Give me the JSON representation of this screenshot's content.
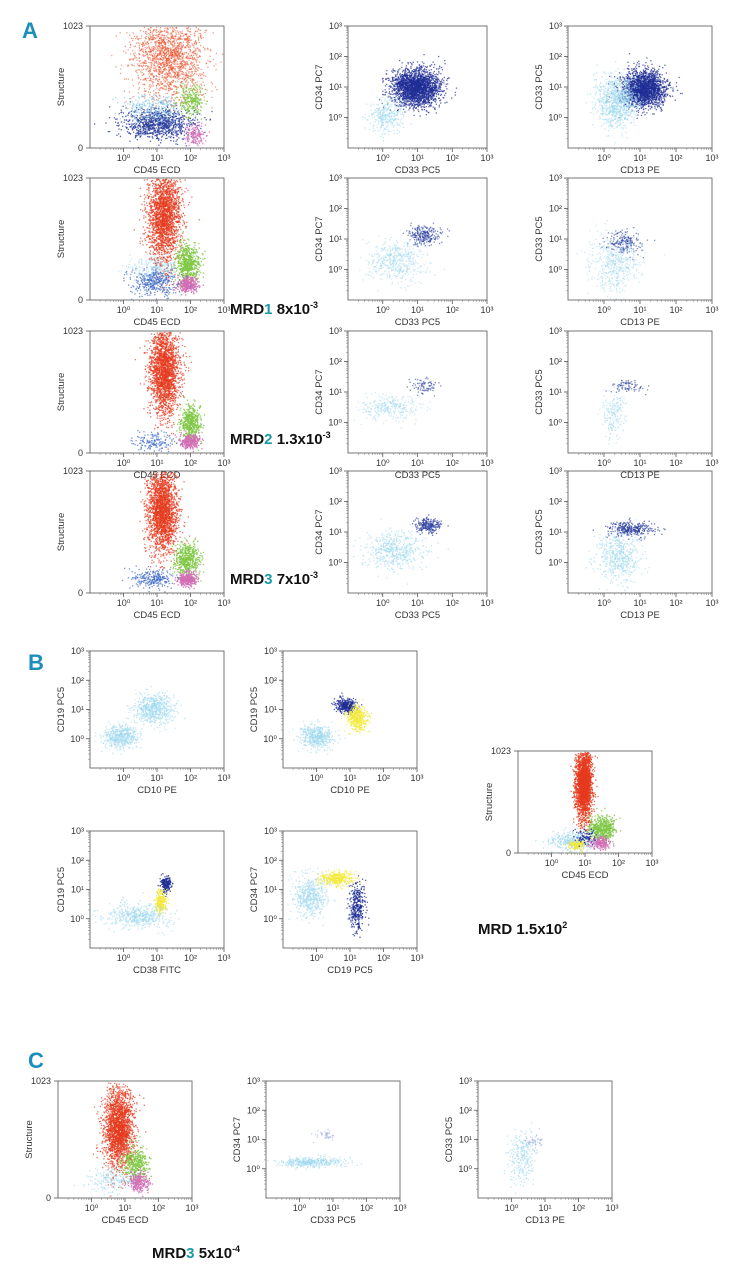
{
  "figure": {
    "section_labels": {
      "a": "A",
      "b": "B",
      "c": "C"
    },
    "mrd_labels": {
      "a1": {
        "prefix": "MRD",
        "num": "1",
        "value": "8x10",
        "exp": "-3"
      },
      "a2": {
        "prefix": "MRD",
        "num": "2",
        "value": "1.3x10",
        "exp": "-3"
      },
      "a3": {
        "prefix": "MRD",
        "num": "3",
        "value": "7x10",
        "exp": "-3"
      },
      "b": {
        "prefix": "MRD",
        "num": "",
        "value": "1.5x10",
        "exp": "2"
      },
      "c": {
        "prefix": "MRD",
        "num": "3",
        "value": "5x10",
        "exp": "-4"
      }
    }
  },
  "chart_data": [
    {
      "id": "A-r0-c0",
      "type": "scatter",
      "kind": "structure",
      "xlabel": "CD45 ECD",
      "ylabel": "Structure",
      "xticks": [
        "10⁰",
        "10¹",
        "10²",
        "10³"
      ],
      "yticks": [
        "0",
        "1023"
      ],
      "populations": [
        {
          "color": "#e8502a",
          "cx": 1.35,
          "cy": 0.76,
          "sx": 0.55,
          "sy": 0.18,
          "n": 1800,
          "alpha": 0.55
        },
        {
          "color": "#2c3f9e",
          "cx": 1.0,
          "cy": 0.2,
          "sx": 0.55,
          "sy": 0.06,
          "n": 900,
          "alpha": 0.8
        },
        {
          "color": "#7cc0e8",
          "cx": 0.9,
          "cy": 0.33,
          "sx": 0.45,
          "sy": 0.06,
          "n": 300,
          "alpha": 0.6
        },
        {
          "color": "#7ec843",
          "cx": 2.0,
          "cy": 0.4,
          "sx": 0.2,
          "sy": 0.07,
          "n": 250,
          "alpha": 0.8
        },
        {
          "color": "#d46db5",
          "cx": 2.1,
          "cy": 0.12,
          "sx": 0.15,
          "sy": 0.04,
          "n": 150,
          "alpha": 0.8
        }
      ]
    },
    {
      "id": "A-r0-c1",
      "type": "scatter",
      "kind": "log",
      "xlabel": "CD33 PC5",
      "ylabel": "CD34 PC7",
      "xticks": [
        "10⁰",
        "10¹",
        "10²",
        "10³"
      ],
      "yticks": [
        "10⁰",
        "10¹",
        "10²",
        "10³"
      ],
      "populations": [
        {
          "color": "#1f2e96",
          "cx": 0.95,
          "cy": 1.0,
          "sx": 0.35,
          "sy": 0.3,
          "n": 2200,
          "alpha": 0.7
        },
        {
          "color": "#9fd8ee",
          "cx": 0.1,
          "cy": 0.1,
          "sx": 0.25,
          "sy": 0.3,
          "n": 300,
          "alpha": 0.6
        }
      ]
    },
    {
      "id": "A-r0-c2",
      "type": "scatter",
      "kind": "log",
      "xlabel": "CD13 PE",
      "ylabel": "CD33 PC5",
      "xticks": [
        "10⁰",
        "10¹",
        "10²",
        "10³"
      ],
      "yticks": [
        "10⁰",
        "10¹",
        "10²",
        "10³"
      ],
      "populations": [
        {
          "color": "#1f2e96",
          "cx": 1.1,
          "cy": 0.95,
          "sx": 0.3,
          "sy": 0.3,
          "n": 2000,
          "alpha": 0.7
        },
        {
          "color": "#9fd8ee",
          "cx": 0.35,
          "cy": 0.55,
          "sx": 0.3,
          "sy": 0.4,
          "n": 900,
          "alpha": 0.6
        }
      ]
    },
    {
      "id": "A-r1-c0",
      "type": "scatter",
      "kind": "structure",
      "xlabel": "CD45 ECD",
      "ylabel": "Structure",
      "xticks": [
        "10⁰",
        "10¹",
        "10²",
        "10³"
      ],
      "yticks": [
        "0",
        "1023"
      ],
      "populations": [
        {
          "color": "#e63a1e",
          "cx": 1.2,
          "cy": 0.7,
          "sx": 0.25,
          "sy": 0.2,
          "n": 2200,
          "alpha": 0.7
        },
        {
          "color": "#7ec843",
          "cx": 1.9,
          "cy": 0.3,
          "sx": 0.18,
          "sy": 0.08,
          "n": 600,
          "alpha": 0.85
        },
        {
          "color": "#d46db5",
          "cx": 1.9,
          "cy": 0.13,
          "sx": 0.15,
          "sy": 0.03,
          "n": 300,
          "alpha": 0.9
        },
        {
          "color": "#3d69c8",
          "cx": 0.9,
          "cy": 0.16,
          "sx": 0.35,
          "sy": 0.06,
          "n": 400,
          "alpha": 0.7
        },
        {
          "color": "#9fd8ee",
          "cx": 0.9,
          "cy": 0.28,
          "sx": 0.35,
          "sy": 0.05,
          "n": 200,
          "alpha": 0.6
        }
      ]
    },
    {
      "id": "A-r1-c1",
      "type": "scatter",
      "kind": "log",
      "xlabel": "CD33 PC5",
      "ylabel": "CD34 PC7",
      "xticks": [
        "10⁰",
        "10¹",
        "10²",
        "10³"
      ],
      "yticks": [
        "10⁰",
        "10¹",
        "10²",
        "10³"
      ],
      "populations": [
        {
          "color": "#2c3f9e",
          "cx": 1.15,
          "cy": 1.15,
          "sx": 0.25,
          "sy": 0.15,
          "n": 250,
          "alpha": 0.6
        },
        {
          "color": "#9fd8ee",
          "cx": 0.4,
          "cy": 0.3,
          "sx": 0.4,
          "sy": 0.35,
          "n": 500,
          "alpha": 0.5
        }
      ]
    },
    {
      "id": "A-r1-c2",
      "type": "scatter",
      "kind": "log",
      "xlabel": "CD13 PE",
      "ylabel": "CD33 PC5",
      "xticks": [
        "10⁰",
        "10¹",
        "10²",
        "10³"
      ],
      "yticks": [
        "10⁰",
        "10¹",
        "10²",
        "10³"
      ],
      "populations": [
        {
          "color": "#2c3f9e",
          "cx": 0.55,
          "cy": 0.9,
          "sx": 0.25,
          "sy": 0.2,
          "n": 200,
          "alpha": 0.6
        },
        {
          "color": "#9fd8ee",
          "cx": 0.3,
          "cy": 0.15,
          "sx": 0.35,
          "sy": 0.45,
          "n": 500,
          "alpha": 0.5
        }
      ]
    },
    {
      "id": "A-r2-c0",
      "type": "scatter",
      "kind": "structure",
      "xlabel": "CD45 ECD",
      "ylabel": "Structure",
      "xticks": [
        "10⁰",
        "10¹",
        "10²",
        "10³"
      ],
      "yticks": [
        "0",
        "1023"
      ],
      "populations": [
        {
          "color": "#e63a1e",
          "cx": 1.2,
          "cy": 0.68,
          "sx": 0.22,
          "sy": 0.18,
          "n": 2200,
          "alpha": 0.7
        },
        {
          "color": "#7ec843",
          "cx": 2.0,
          "cy": 0.25,
          "sx": 0.15,
          "sy": 0.07,
          "n": 500,
          "alpha": 0.85
        },
        {
          "color": "#d46db5",
          "cx": 1.95,
          "cy": 0.1,
          "sx": 0.15,
          "sy": 0.03,
          "n": 300,
          "alpha": 0.9
        },
        {
          "color": "#3d69c8",
          "cx": 0.9,
          "cy": 0.1,
          "sx": 0.3,
          "sy": 0.04,
          "n": 150,
          "alpha": 0.7
        }
      ]
    },
    {
      "id": "A-r2-c1",
      "type": "scatter",
      "kind": "log",
      "xlabel": "CD33 PC5",
      "ylabel": "CD34 PC7",
      "xticks": [
        "10⁰",
        "10¹",
        "10²",
        "10³"
      ],
      "yticks": [
        "10⁰",
        "10¹",
        "10²",
        "10³"
      ],
      "populations": [
        {
          "color": "#2c3f9e",
          "cx": 1.2,
          "cy": 1.2,
          "sx": 0.2,
          "sy": 0.12,
          "n": 80,
          "alpha": 0.6
        },
        {
          "color": "#9fd8ee",
          "cx": 0.2,
          "cy": 0.5,
          "sx": 0.45,
          "sy": 0.2,
          "n": 300,
          "alpha": 0.5
        }
      ]
    },
    {
      "id": "A-r2-c2",
      "type": "scatter",
      "kind": "log",
      "xlabel": "CD13 PE",
      "ylabel": "CD33 PC5",
      "xticks": [
        "10⁰",
        "10¹",
        "10²",
        "10³"
      ],
      "yticks": [
        "10⁰",
        "10¹",
        "10²",
        "10³"
      ],
      "populations": [
        {
          "color": "#2c3f9e",
          "cx": 0.7,
          "cy": 1.2,
          "sx": 0.25,
          "sy": 0.1,
          "n": 80,
          "alpha": 0.6
        },
        {
          "color": "#9fd8ee",
          "cx": 0.25,
          "cy": 0.3,
          "sx": 0.15,
          "sy": 0.4,
          "n": 200,
          "alpha": 0.5
        }
      ]
    },
    {
      "id": "A-r3-c0",
      "type": "scatter",
      "kind": "structure",
      "xlabel": "CD45 ECD",
      "ylabel": "Structure",
      "xticks": [
        "10⁰",
        "10¹",
        "10²",
        "10³"
      ],
      "yticks": [
        "0",
        "1023"
      ],
      "populations": [
        {
          "color": "#e63a1e",
          "cx": 1.15,
          "cy": 0.68,
          "sx": 0.22,
          "sy": 0.17,
          "n": 2200,
          "alpha": 0.7
        },
        {
          "color": "#7ec843",
          "cx": 1.9,
          "cy": 0.28,
          "sx": 0.18,
          "sy": 0.07,
          "n": 500,
          "alpha": 0.85
        },
        {
          "color": "#d46db5",
          "cx": 1.9,
          "cy": 0.12,
          "sx": 0.15,
          "sy": 0.03,
          "n": 300,
          "alpha": 0.9
        },
        {
          "color": "#3d69c8",
          "cx": 0.85,
          "cy": 0.12,
          "sx": 0.3,
          "sy": 0.04,
          "n": 250,
          "alpha": 0.7
        }
      ]
    },
    {
      "id": "A-r3-c1",
      "type": "scatter",
      "kind": "log",
      "xlabel": "CD33 PC5",
      "ylabel": "CD34 PC7",
      "xticks": [
        "10⁰",
        "10¹",
        "10²",
        "10³"
      ],
      "yticks": [
        "10⁰",
        "10¹",
        "10²",
        "10³"
      ],
      "populations": [
        {
          "color": "#2c3f9e",
          "cx": 1.3,
          "cy": 1.25,
          "sx": 0.18,
          "sy": 0.12,
          "n": 220,
          "alpha": 0.7
        },
        {
          "color": "#9fd8ee",
          "cx": 0.3,
          "cy": 0.4,
          "sx": 0.45,
          "sy": 0.3,
          "n": 500,
          "alpha": 0.6
        }
      ]
    },
    {
      "id": "A-r3-c2",
      "type": "scatter",
      "kind": "log",
      "xlabel": "CD13 PE",
      "ylabel": "CD33 PC5",
      "xticks": [
        "10⁰",
        "10¹",
        "10²",
        "10³"
      ],
      "yticks": [
        "10⁰",
        "10¹",
        "10²",
        "10³"
      ],
      "populations": [
        {
          "color": "#2c3f9e",
          "cx": 0.75,
          "cy": 1.1,
          "sx": 0.3,
          "sy": 0.12,
          "n": 300,
          "alpha": 0.7
        },
        {
          "color": "#9fd8ee",
          "cx": 0.4,
          "cy": 0.2,
          "sx": 0.3,
          "sy": 0.4,
          "n": 500,
          "alpha": 0.6
        }
      ]
    },
    {
      "id": "B-1",
      "type": "scatter",
      "kind": "log",
      "xlabel": "CD10 PE",
      "ylabel": "CD19 PC5",
      "xticks": [
        "10⁰",
        "10¹",
        "10²",
        "10³"
      ],
      "yticks": [
        "10⁰",
        "10¹",
        "10²",
        "10³"
      ],
      "populations": [
        {
          "color": "#9fd8ee",
          "cx": 0.9,
          "cy": 1.05,
          "sx": 0.3,
          "sy": 0.25,
          "n": 600,
          "alpha": 0.6
        },
        {
          "color": "#9fd8ee",
          "cx": -0.1,
          "cy": 0.1,
          "sx": 0.25,
          "sy": 0.2,
          "n": 500,
          "alpha": 0.6
        }
      ]
    },
    {
      "id": "B-2",
      "type": "scatter",
      "kind": "log",
      "xlabel": "CD10 PE",
      "ylabel": "CD19 PC5",
      "xticks": [
        "10⁰",
        "10¹",
        "10²",
        "10³"
      ],
      "yticks": [
        "10⁰",
        "10¹",
        "10²",
        "10³"
      ],
      "populations": [
        {
          "color": "#1f2e96",
          "cx": 0.85,
          "cy": 1.15,
          "sx": 0.15,
          "sy": 0.12,
          "n": 350,
          "alpha": 0.75
        },
        {
          "color": "#f3e83a",
          "cx": 1.2,
          "cy": 0.7,
          "sx": 0.15,
          "sy": 0.2,
          "n": 400,
          "alpha": 0.75
        },
        {
          "color": "#9fd8ee",
          "cx": 0.0,
          "cy": 0.1,
          "sx": 0.25,
          "sy": 0.2,
          "n": 500,
          "alpha": 0.6
        }
      ]
    },
    {
      "id": "B-3",
      "type": "scatter",
      "kind": "log",
      "xlabel": "CD38 FITC",
      "ylabel": "CD19 PC5",
      "xticks": [
        "10⁰",
        "10¹",
        "10²",
        "10³"
      ],
      "yticks": [
        "10⁰",
        "10¹",
        "10²",
        "10³"
      ],
      "populations": [
        {
          "color": "#1f2e96",
          "cx": 1.25,
          "cy": 1.2,
          "sx": 0.08,
          "sy": 0.12,
          "n": 200,
          "alpha": 0.8
        },
        {
          "color": "#f3e83a",
          "cx": 1.1,
          "cy": 0.6,
          "sx": 0.08,
          "sy": 0.2,
          "n": 250,
          "alpha": 0.8
        },
        {
          "color": "#9fd8ee",
          "cx": 0.4,
          "cy": 0.1,
          "sx": 0.45,
          "sy": 0.2,
          "n": 500,
          "alpha": 0.6
        }
      ]
    },
    {
      "id": "B-4",
      "type": "scatter",
      "kind": "log",
      "xlabel": "CD19 PC5",
      "ylabel": "CD34 PC7",
      "xticks": [
        "10⁰",
        "10¹",
        "10²",
        "10³"
      ],
      "yticks": [
        "10⁰",
        "10¹",
        "10²",
        "10³"
      ],
      "populations": [
        {
          "color": "#f3e83a",
          "cx": 0.6,
          "cy": 1.4,
          "sx": 0.25,
          "sy": 0.12,
          "n": 350,
          "alpha": 0.75
        },
        {
          "color": "#1f2e96",
          "cx": 1.2,
          "cy": 0.4,
          "sx": 0.12,
          "sy": 0.4,
          "n": 350,
          "alpha": 0.75
        },
        {
          "color": "#9fd8ee",
          "cx": -0.2,
          "cy": 0.8,
          "sx": 0.25,
          "sy": 0.35,
          "n": 500,
          "alpha": 0.6
        }
      ]
    },
    {
      "id": "B-5",
      "type": "scatter",
      "kind": "structure",
      "xlabel": "CD45 ECD",
      "ylabel": "Structure",
      "xticks": [
        "10⁰",
        "10¹",
        "10²",
        "10³"
      ],
      "yticks": [
        "0",
        "1023"
      ],
      "populations": [
        {
          "color": "#e63a1e",
          "cx": 0.95,
          "cy": 0.68,
          "sx": 0.12,
          "sy": 0.17,
          "n": 2200,
          "alpha": 0.8
        },
        {
          "color": "#7ec843",
          "cx": 1.5,
          "cy": 0.24,
          "sx": 0.2,
          "sy": 0.06,
          "n": 500,
          "alpha": 0.85
        },
        {
          "color": "#d46db5",
          "cx": 1.4,
          "cy": 0.1,
          "sx": 0.15,
          "sy": 0.03,
          "n": 200,
          "alpha": 0.9
        },
        {
          "color": "#9fd8ee",
          "cx": 0.6,
          "cy": 0.12,
          "sx": 0.35,
          "sy": 0.05,
          "n": 350,
          "alpha": 0.7
        },
        {
          "color": "#f3e83a",
          "cx": 0.75,
          "cy": 0.08,
          "sx": 0.12,
          "sy": 0.025,
          "n": 120,
          "alpha": 0.9
        },
        {
          "color": "#1f2e96",
          "cx": 1.0,
          "cy": 0.16,
          "sx": 0.15,
          "sy": 0.04,
          "n": 80,
          "alpha": 0.8
        }
      ]
    },
    {
      "id": "C-1",
      "type": "scatter",
      "kind": "structure",
      "xlabel": "CD45 ECD",
      "ylabel": "Structure",
      "xticks": [
        "10⁰",
        "10¹",
        "10²",
        "10³"
      ],
      "yticks": [
        "0",
        "1023"
      ],
      "populations": [
        {
          "color": "#e63a1e",
          "cx": 0.8,
          "cy": 0.6,
          "sx": 0.22,
          "sy": 0.18,
          "n": 2200,
          "alpha": 0.7
        },
        {
          "color": "#7ec843",
          "cx": 1.3,
          "cy": 0.3,
          "sx": 0.18,
          "sy": 0.07,
          "n": 400,
          "alpha": 0.85
        },
        {
          "color": "#d46db5",
          "cx": 1.4,
          "cy": 0.14,
          "sx": 0.15,
          "sy": 0.04,
          "n": 250,
          "alpha": 0.9
        },
        {
          "color": "#9fd8ee",
          "cx": 0.6,
          "cy": 0.16,
          "sx": 0.35,
          "sy": 0.05,
          "n": 200,
          "alpha": 0.6
        }
      ]
    },
    {
      "id": "C-2",
      "type": "scatter",
      "kind": "log",
      "xlabel": "CD33 PC5",
      "ylabel": "CD34 PC7",
      "xticks": [
        "10⁰",
        "10¹",
        "10²",
        "10³"
      ],
      "yticks": [
        "10⁰",
        "10¹",
        "10²",
        "10³"
      ],
      "populations": [
        {
          "color": "#9fd8ee",
          "cx": 0.3,
          "cy": 0.25,
          "sx": 0.5,
          "sy": 0.08,
          "n": 400,
          "alpha": 0.6
        },
        {
          "color": "#8ca0d8",
          "cx": 0.75,
          "cy": 1.2,
          "sx": 0.18,
          "sy": 0.1,
          "n": 40,
          "alpha": 0.5
        }
      ]
    },
    {
      "id": "C-3",
      "type": "scatter",
      "kind": "log",
      "xlabel": "CD13 PE",
      "ylabel": "CD33 PC5",
      "xticks": [
        "10⁰",
        "10¹",
        "10²",
        "10³"
      ],
      "yticks": [
        "10⁰",
        "10¹",
        "10²",
        "10³"
      ],
      "populations": [
        {
          "color": "#9fd8ee",
          "cx": 0.3,
          "cy": 0.4,
          "sx": 0.2,
          "sy": 0.45,
          "n": 250,
          "alpha": 0.6
        },
        {
          "color": "#8ca0d8",
          "cx": 0.6,
          "cy": 0.9,
          "sx": 0.15,
          "sy": 0.15,
          "n": 50,
          "alpha": 0.5
        }
      ]
    }
  ]
}
